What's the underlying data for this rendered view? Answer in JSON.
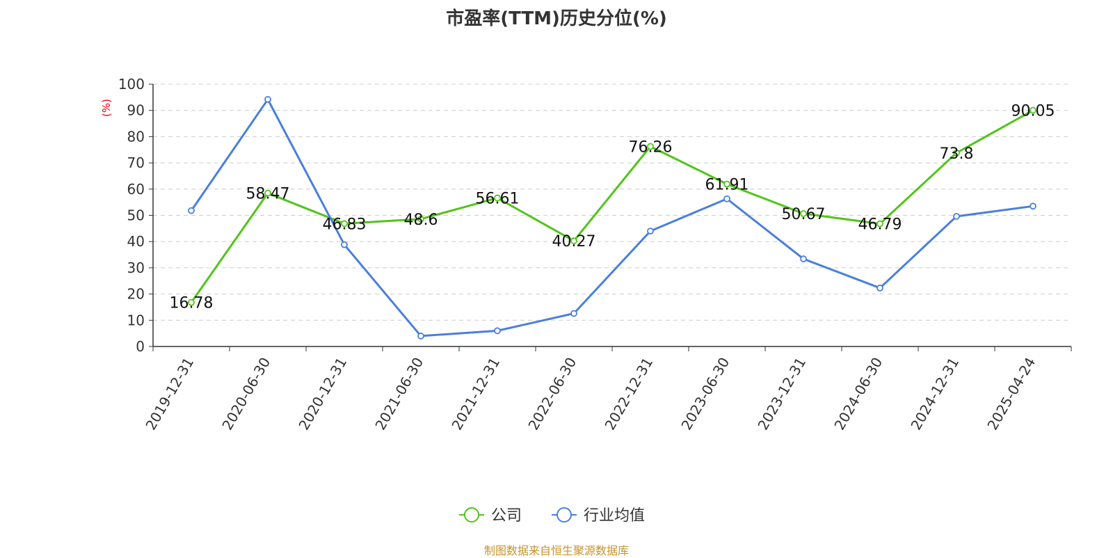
{
  "title": "市盈率(TTM)历史分位(%)",
  "footer": "制图数据来自恒生聚源数据库",
  "chart_data": {
    "type": "line",
    "title": "市盈率(TTM)历史分位(%)",
    "ylabel": "(%)",
    "xlabel": "",
    "categories": [
      "2019-12-31",
      "2020-06-30",
      "2020-12-31",
      "2021-06-30",
      "2021-12-31",
      "2022-06-30",
      "2022-12-31",
      "2023-06-30",
      "2023-12-31",
      "2024-06-30",
      "2024-12-31",
      "2025-04-24"
    ],
    "ylim": [
      0,
      100
    ],
    "yticks": [
      0,
      10,
      20,
      30,
      40,
      50,
      60,
      70,
      80,
      90,
      100
    ],
    "grid": true,
    "legend_position": "bottom-center",
    "series": [
      {
        "name": "公司",
        "color": "#52c41a",
        "values": [
          16.78,
          58.47,
          46.83,
          48.6,
          56.61,
          40.27,
          76.26,
          61.91,
          50.67,
          46.79,
          73.8,
          90.05
        ],
        "labels": [
          "16.78",
          "58.47",
          "46.83",
          "48.6",
          "56.61",
          "40.27",
          "76.26",
          "61.91",
          "50.67",
          "46.79",
          "73.8",
          "90.05"
        ]
      },
      {
        "name": "行业均值",
        "color": "#4a7fdc",
        "values": [
          51.8,
          94.2,
          38.8,
          4.0,
          6.0,
          12.6,
          44.0,
          56.3,
          33.4,
          22.3,
          49.6,
          53.5
        ]
      }
    ]
  }
}
